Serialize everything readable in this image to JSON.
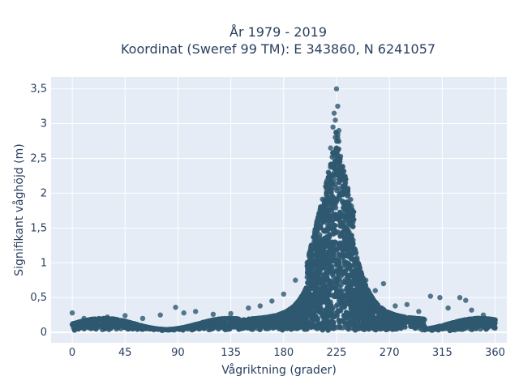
{
  "chart_data": {
    "type": "scatter",
    "title": "År 1979 - 2019",
    "subtitle": "Koordinat (Sweref 99 TM): E 343860, N 6241057",
    "xlabel": "Vågriktning (grader)",
    "ylabel": "Signifikant våghöjd (m)",
    "xlim": [
      -18,
      370
    ],
    "ylim": [
      -0.15,
      3.67
    ],
    "x_ticks": [
      0,
      45,
      90,
      135,
      180,
      225,
      270,
      315,
      360
    ],
    "x_tick_labels": [
      "0",
      "45",
      "90",
      "135",
      "180",
      "225",
      "270",
      "315",
      "360"
    ],
    "y_ticks": [
      0,
      0.5,
      1,
      1.5,
      2,
      2.5,
      3,
      3.5
    ],
    "y_tick_labels": [
      "0",
      "0,5",
      "1",
      "1,5",
      "2",
      "2,5",
      "3",
      "3,5"
    ],
    "grid": true,
    "marker_color": "#2e5870",
    "background_color": "#e5ecf6",
    "points": [
      {
        "x": 0,
        "y": 0.28
      },
      {
        "x": 2,
        "y": 0.12
      },
      {
        "x": 10,
        "y": 0.2
      },
      {
        "x": 20,
        "y": 0.16
      },
      {
        "x": 30,
        "y": 0.22
      },
      {
        "x": 45,
        "y": 0.24
      },
      {
        "x": 60,
        "y": 0.2
      },
      {
        "x": 75,
        "y": 0.25
      },
      {
        "x": 88,
        "y": 0.36
      },
      {
        "x": 95,
        "y": 0.28
      },
      {
        "x": 105,
        "y": 0.3
      },
      {
        "x": 120,
        "y": 0.26
      },
      {
        "x": 135,
        "y": 0.27
      },
      {
        "x": 150,
        "y": 0.35
      },
      {
        "x": 160,
        "y": 0.38
      },
      {
        "x": 170,
        "y": 0.45
      },
      {
        "x": 180,
        "y": 0.55
      },
      {
        "x": 190,
        "y": 0.75
      },
      {
        "x": 200,
        "y": 1.0
      },
      {
        "x": 208,
        "y": 1.3
      },
      {
        "x": 214,
        "y": 1.75
      },
      {
        "x": 218,
        "y": 2.3
      },
      {
        "x": 220,
        "y": 2.65
      },
      {
        "x": 222,
        "y": 2.95
      },
      {
        "x": 223,
        "y": 3.15
      },
      {
        "x": 224,
        "y": 3.05
      },
      {
        "x": 225,
        "y": 3.5
      },
      {
        "x": 226,
        "y": 3.25
      },
      {
        "x": 227,
        "y": 2.9
      },
      {
        "x": 228,
        "y": 2.5
      },
      {
        "x": 230,
        "y": 2.0
      },
      {
        "x": 233,
        "y": 1.5
      },
      {
        "x": 237,
        "y": 1.1
      },
      {
        "x": 243,
        "y": 0.85
      },
      {
        "x": 250,
        "y": 0.75
      },
      {
        "x": 258,
        "y": 0.6
      },
      {
        "x": 265,
        "y": 0.7
      },
      {
        "x": 275,
        "y": 0.38
      },
      {
        "x": 285,
        "y": 0.4
      },
      {
        "x": 295,
        "y": 0.3
      },
      {
        "x": 305,
        "y": 0.52
      },
      {
        "x": 313,
        "y": 0.5
      },
      {
        "x": 320,
        "y": 0.35
      },
      {
        "x": 330,
        "y": 0.5
      },
      {
        "x": 335,
        "y": 0.46
      },
      {
        "x": 340,
        "y": 0.32
      },
      {
        "x": 350,
        "y": 0.25
      },
      {
        "x": 360,
        "y": 0.18
      },
      {
        "x": 360,
        "y": 0.06
      },
      {
        "x": 300,
        "y": 0.08
      },
      {
        "x": 270,
        "y": 0.06
      },
      {
        "x": 240,
        "y": 0.05
      },
      {
        "x": 200,
        "y": 0.05
      },
      {
        "x": 160,
        "y": 0.05
      },
      {
        "x": 120,
        "y": 0.06
      },
      {
        "x": 60,
        "y": 0.07
      }
    ]
  }
}
